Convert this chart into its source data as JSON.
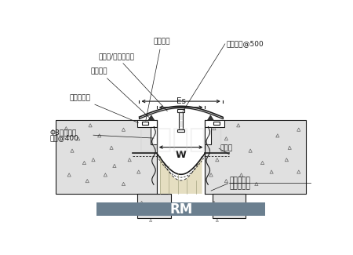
{
  "title": "RM",
  "title_bg": "#6b7f8f",
  "title_color": "#ffffff",
  "bg_color": "#ffffff",
  "line_color": "#1a1a1a",
  "concrete_color": "#e0e0e0",
  "labels": {
    "zhishui_pian": "止水垫片",
    "lvhejin_gaiban": "铝合金/不锈钢盖板",
    "zhishui_jiaotiao": "止水胶条",
    "lvhejin_jizuo": "铝合金基座",
    "phi8_1": "Φ8塑料胀锚",
    "phi8_2": "螺栓@400",
    "zhongxin": "中心滑杆@500",
    "Es": "Es",
    "W": "W",
    "zhishuidai": "止水带",
    "xuanyong": "选用阻火带",
    "anGongcheng": "按工程设计"
  }
}
